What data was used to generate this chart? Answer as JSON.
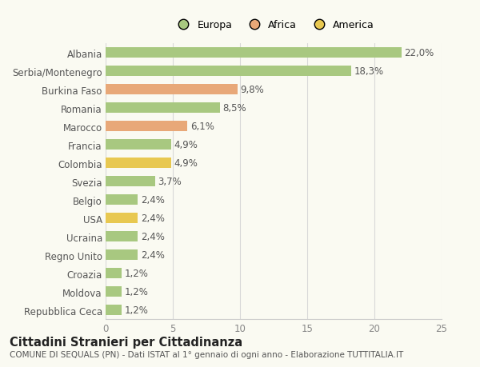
{
  "categories": [
    "Albania",
    "Serbia/Montenegro",
    "Burkina Faso",
    "Romania",
    "Marocco",
    "Francia",
    "Colombia",
    "Svezia",
    "Belgio",
    "USA",
    "Ucraina",
    "Regno Unito",
    "Croazia",
    "Moldova",
    "Repubblica Ceca"
  ],
  "values": [
    22.0,
    18.3,
    9.8,
    8.5,
    6.1,
    4.9,
    4.9,
    3.7,
    2.4,
    2.4,
    2.4,
    2.4,
    1.2,
    1.2,
    1.2
  ],
  "labels": [
    "22,0%",
    "18,3%",
    "9,8%",
    "8,5%",
    "6,1%",
    "4,9%",
    "4,9%",
    "3,7%",
    "2,4%",
    "2,4%",
    "2,4%",
    "2,4%",
    "1,2%",
    "1,2%",
    "1,2%"
  ],
  "colors": [
    "#a8c880",
    "#a8c880",
    "#e8a878",
    "#a8c880",
    "#e8a878",
    "#a8c880",
    "#e8c850",
    "#a8c880",
    "#a8c880",
    "#e8c850",
    "#a8c880",
    "#a8c880",
    "#a8c880",
    "#a8c880",
    "#a8c880"
  ],
  "legend_labels": [
    "Europa",
    "Africa",
    "America"
  ],
  "legend_colors": [
    "#a8c880",
    "#e8a878",
    "#e8c850"
  ],
  "xlim": [
    0,
    25
  ],
  "xticks": [
    0,
    5,
    10,
    15,
    20,
    25
  ],
  "title": "Cittadini Stranieri per Cittadinanza",
  "subtitle": "COMUNE DI SEQUALS (PN) - Dati ISTAT al 1° gennaio di ogni anno - Elaborazione TUTTITALIA.IT",
  "bg_color": "#fafaf2",
  "bar_height": 0.55,
  "label_fontsize": 8.5,
  "tick_fontsize": 8.5,
  "title_fontsize": 10.5,
  "subtitle_fontsize": 7.5
}
